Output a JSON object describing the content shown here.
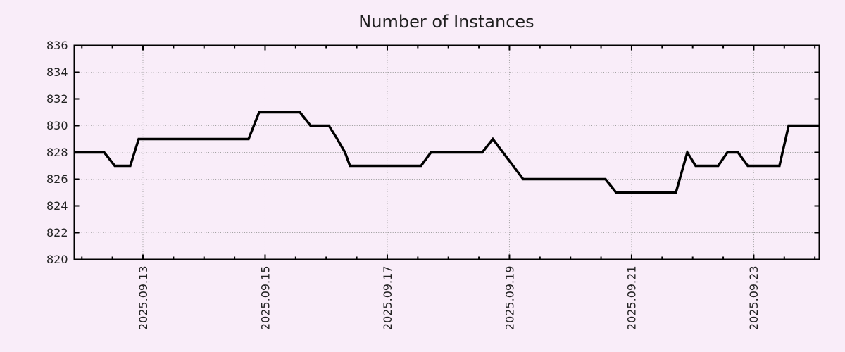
{
  "colors": {
    "background": "#f9edf9",
    "grid": "#999999",
    "axis_border": "#000000",
    "series_line": "#000000",
    "text": "#222222"
  },
  "chart_data": {
    "type": "line",
    "title": "Number of Instances",
    "legend": null,
    "grid": {
      "x": true,
      "y": true,
      "style": "dotted"
    },
    "x_axis": {
      "kind": "time",
      "epoch_day0": "2025-09-13",
      "min_days": -1.124,
      "max_days": 11.073,
      "minor_tick_interval_days": 0.5,
      "major_ticks": [
        {
          "days": 0,
          "label": "2025.09.13"
        },
        {
          "days": 2,
          "label": "2025.09.15"
        },
        {
          "days": 4,
          "label": "2025.09.17"
        },
        {
          "days": 6,
          "label": "2025.09.19"
        },
        {
          "days": 8,
          "label": "2025.09.21"
        },
        {
          "days": 10,
          "label": "2025.09.23"
        }
      ]
    },
    "y_axis": {
      "min": 820,
      "max": 836,
      "tick_step": 2,
      "tick_labels": [
        "820",
        "822",
        "824",
        "826",
        "828",
        "830",
        "832",
        "834",
        "836"
      ]
    },
    "series": [
      {
        "name": "instances",
        "color": "#000000",
        "line_width": 3.5,
        "points": [
          {
            "t": "2025-09-11 21:00",
            "days": -1.124,
            "value": 828
          },
          {
            "t": "2025-09-12 08:50",
            "days": -0.634,
            "value": 828
          },
          {
            "t": "2025-09-12 13:00",
            "days": -0.461,
            "value": 827
          },
          {
            "t": "2025-09-12 19:00",
            "days": -0.208,
            "value": 827
          },
          {
            "t": "2025-09-12 22:20",
            "days": -0.069,
            "value": 829
          },
          {
            "t": "2025-09-14 17:30",
            "days": 1.729,
            "value": 829
          },
          {
            "t": "2025-09-14 21:40",
            "days": 1.902,
            "value": 831
          },
          {
            "t": "2025-09-15 13:40",
            "days": 2.571,
            "value": 831
          },
          {
            "t": "2025-09-15 17:50",
            "days": 2.744,
            "value": 830
          },
          {
            "t": "2025-09-16 01:00",
            "days": 3.043,
            "value": 830
          },
          {
            "t": "2025-09-16 04:20",
            "days": 3.182,
            "value": 829
          },
          {
            "t": "2025-09-16 07:25",
            "days": 3.309,
            "value": 828
          },
          {
            "t": "2025-09-16 09:20",
            "days": 3.389,
            "value": 827
          },
          {
            "t": "2025-09-17 13:15",
            "days": 4.553,
            "value": 827
          },
          {
            "t": "2025-09-17 17:10",
            "days": 4.715,
            "value": 828
          },
          {
            "t": "2025-09-18 13:20",
            "days": 5.556,
            "value": 828
          },
          {
            "t": "2025-09-18 17:30",
            "days": 5.729,
            "value": 829
          },
          {
            "t": "2025-09-19 05:25",
            "days": 6.225,
            "value": 826
          },
          {
            "t": "2025-09-20 13:45",
            "days": 7.573,
            "value": 826
          },
          {
            "t": "2025-09-20 17:55",
            "days": 7.746,
            "value": 825
          },
          {
            "t": "2025-09-21 17:25",
            "days": 8.726,
            "value": 825
          },
          {
            "t": "2025-09-21 21:50",
            "days": 8.911,
            "value": 828
          },
          {
            "t": "2025-09-22 01:10",
            "days": 9.049,
            "value": 827
          },
          {
            "t": "2025-09-22 10:00",
            "days": 9.418,
            "value": 827
          },
          {
            "t": "2025-09-22 13:40",
            "days": 9.568,
            "value": 828
          },
          {
            "t": "2025-09-22 17:45",
            "days": 9.741,
            "value": 828
          },
          {
            "t": "2025-09-22 21:40",
            "days": 9.902,
            "value": 827
          },
          {
            "t": "2025-09-23 10:05",
            "days": 10.421,
            "value": 827
          },
          {
            "t": "2025-09-23 13:40",
            "days": 10.571,
            "value": 830
          },
          {
            "t": "2025-09-24 01:45",
            "days": 11.073,
            "value": 830
          }
        ]
      }
    ]
  }
}
